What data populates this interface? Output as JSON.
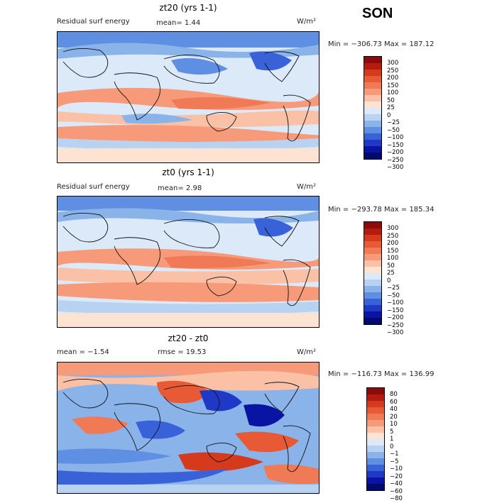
{
  "season": "SON",
  "panels": [
    {
      "title": "zt20 (yrs 1-1)",
      "left_text": "Residual surf energy",
      "mean_text": "mean=   1.44",
      "units": "W/m²",
      "range_text": "Min = −306.73  Max = 187.12",
      "levels": [
        "300",
        "250",
        "200",
        "150",
        "100",
        "50",
        "25",
        "0",
        "−25",
        "−50",
        "−100",
        "−150",
        "−200",
        "−250",
        "−300"
      ],
      "colors": [
        "#8c0a0a",
        "#b31c0e",
        "#d63a1c",
        "#e85a36",
        "#f07a55",
        "#f69a7a",
        "#fbc1a6",
        "#fde4d2",
        "#dbe9f8",
        "#b7d3f1",
        "#8ab3ea",
        "#5f8fe2",
        "#3a62d8",
        "#1f39c6",
        "#0a14a3",
        "#020a6e"
      ]
    },
    {
      "title": "zt0 (yrs 1-1)",
      "left_text": "Residual surf energy",
      "mean_text": "mean=   2.98",
      "units": "W/m²",
      "range_text": "Min = −293.78  Max = 185.34",
      "levels": [
        "300",
        "250",
        "200",
        "150",
        "100",
        "50",
        "25",
        "0",
        "−25",
        "−50",
        "−100",
        "−150",
        "−200",
        "−250",
        "−300"
      ],
      "colors": [
        "#8c0a0a",
        "#b31c0e",
        "#d63a1c",
        "#e85a36",
        "#f07a55",
        "#f69a7a",
        "#fbc1a6",
        "#fde4d2",
        "#dbe9f8",
        "#b7d3f1",
        "#8ab3ea",
        "#5f8fe2",
        "#3a62d8",
        "#1f39c6",
        "#0a14a3",
        "#020a6e"
      ]
    },
    {
      "title": "zt20 - zt0",
      "left_text": "mean =   −1.54",
      "mean_text": "rmse =   19.53",
      "units": "W/m²",
      "range_text": "Min = −116.73  Max = 136.99",
      "levels": [
        "80",
        "60",
        "40",
        "20",
        "10",
        "5",
        "1",
        "0",
        "−1",
        "−5",
        "−10",
        "−20",
        "−40",
        "−60",
        "−80"
      ],
      "colors": [
        "#8c0a0a",
        "#b31c0e",
        "#d63a1c",
        "#e85a36",
        "#f07a55",
        "#f69a7a",
        "#fbc1a6",
        "#fde4d2",
        "#dbe9f8",
        "#b7d3f1",
        "#8ab3ea",
        "#5f8fe2",
        "#3a62d8",
        "#1f39c6",
        "#0a14a3",
        "#020a6e"
      ]
    }
  ]
}
